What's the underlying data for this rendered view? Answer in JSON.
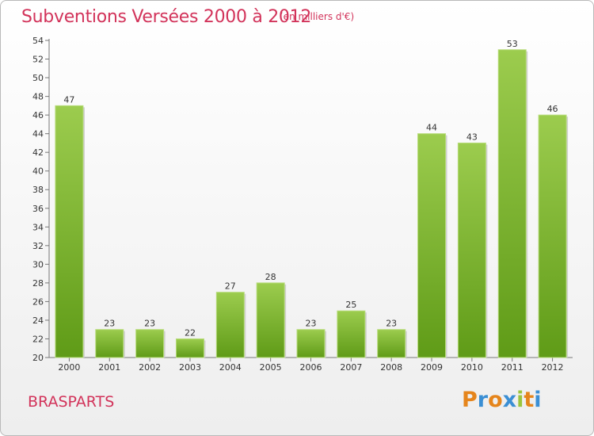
{
  "header": {
    "title": "Subventions Versées 2000 à 2012",
    "subtitle": "(en milliers d'€)"
  },
  "footer": {
    "commune": "BRASPARTS",
    "brand": [
      "P",
      "r",
      "o",
      "x",
      "i",
      "t",
      "i"
    ],
    "brand_colors": [
      "#e5851c",
      "#3b8fd4",
      "#e5851c",
      "#3b8fd4",
      "#9bc53d",
      "#e5851c",
      "#3b8fd4"
    ]
  },
  "chart_data": {
    "type": "bar",
    "title": "Subventions Versées 2000 à 2012",
    "subtitle": "(en milliers d'€)",
    "categories": [
      "2000",
      "2001",
      "2002",
      "2003",
      "2004",
      "2005",
      "2006",
      "2007",
      "2008",
      "2009",
      "2010",
      "2011",
      "2012"
    ],
    "values": [
      47,
      23,
      23,
      22,
      27,
      28,
      23,
      25,
      23,
      44,
      43,
      53,
      46
    ],
    "ylim": [
      20,
      54
    ],
    "yticks": [
      20,
      22,
      24,
      26,
      28,
      30,
      32,
      34,
      36,
      38,
      40,
      42,
      44,
      46,
      48,
      50,
      52,
      54
    ],
    "grid": false,
    "bar_color_top": "#9ccc4e",
    "bar_color_bottom": "#5f9b17"
  }
}
